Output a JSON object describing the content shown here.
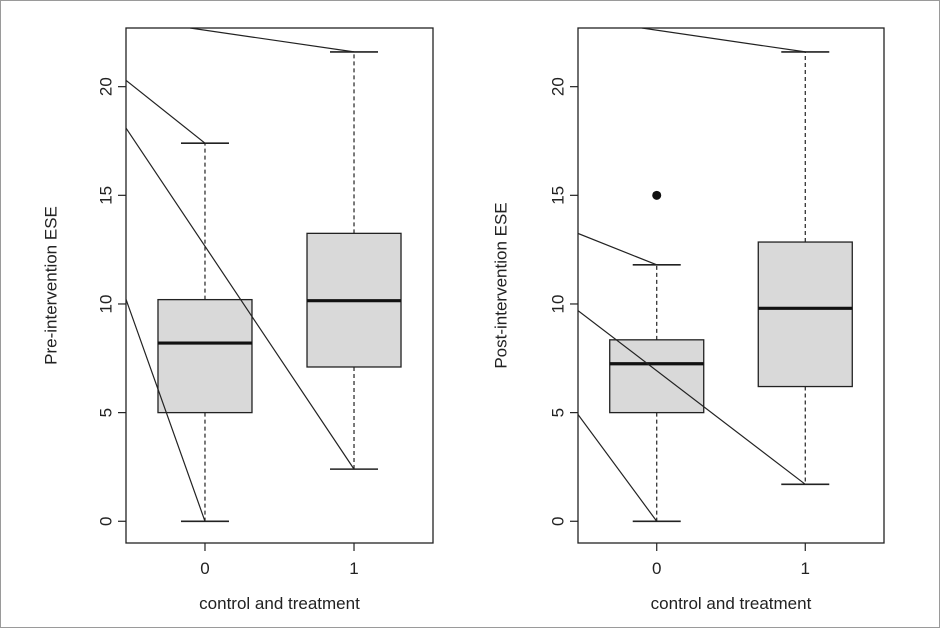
{
  "chart_data": [
    {
      "type": "box",
      "ylabel": "Pre-intervention ESE",
      "xlabel": "control and treatment",
      "categories": [
        "0",
        "1"
      ],
      "yticks": [
        "0",
        "5",
        "10",
        "15",
        "20"
      ],
      "ylim": [
        -1,
        22.7
      ],
      "boxes": [
        {
          "category": "0",
          "min": 0,
          "q1": 5.0,
          "median": 8.2,
          "q3": 10.2,
          "max": 17.4,
          "outliers": []
        },
        {
          "category": "1",
          "min": 2.4,
          "q1": 7.1,
          "median": 10.15,
          "q3": 13.25,
          "max": 21.6,
          "outliers": []
        }
      ],
      "connecting_lines": [
        {
          "from": [
            0.45,
            20.4
          ],
          "to": [
            0,
            17.4
          ]
        },
        {
          "from": [
            0.45,
            18.3
          ],
          "to": [
            1,
            2.4
          ]
        },
        {
          "from": [
            0.45,
            10.6
          ],
          "to": [
            0,
            0
          ]
        },
        {
          "from": [
            0.9,
            22.7
          ],
          "to": [
            1,
            21.6
          ]
        }
      ]
    },
    {
      "type": "box",
      "ylabel": "Post-intervention ESE",
      "xlabel": "control and treatment",
      "categories": [
        "0",
        "1"
      ],
      "yticks": [
        "0",
        "5",
        "10",
        "15",
        "20"
      ],
      "ylim": [
        -1,
        22.7
      ],
      "boxes": [
        {
          "category": "0",
          "min": 0,
          "q1": 5.0,
          "median": 7.25,
          "q3": 8.35,
          "max": 11.8,
          "outliers": [
            15.0
          ]
        },
        {
          "category": "1",
          "min": 1.7,
          "q1": 6.2,
          "median": 9.8,
          "q3": 12.85,
          "max": 21.6,
          "outliers": []
        }
      ],
      "connecting_lines": [
        {
          "from": [
            0.45,
            13.3
          ],
          "to": [
            0,
            11.8
          ]
        },
        {
          "from": [
            0.45,
            9.8
          ],
          "to": [
            1,
            1.7
          ]
        },
        {
          "from": [
            0.45,
            5.1
          ],
          "to": [
            0,
            0
          ]
        },
        {
          "from": [
            0.9,
            22.7
          ],
          "to": [
            1,
            21.6
          ]
        }
      ]
    }
  ]
}
